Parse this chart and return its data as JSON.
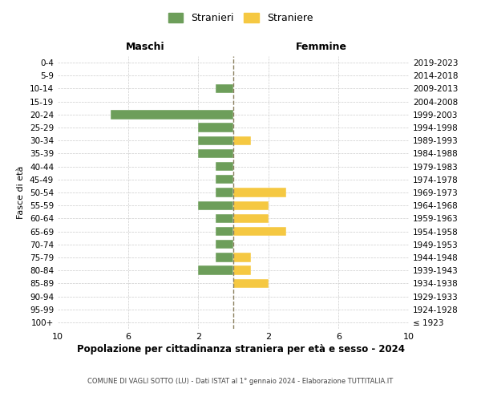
{
  "age_groups": [
    "100+",
    "95-99",
    "90-94",
    "85-89",
    "80-84",
    "75-79",
    "70-74",
    "65-69",
    "60-64",
    "55-59",
    "50-54",
    "45-49",
    "40-44",
    "35-39",
    "30-34",
    "25-29",
    "20-24",
    "15-19",
    "10-14",
    "5-9",
    "0-4"
  ],
  "birth_years": [
    "≤ 1923",
    "1924-1928",
    "1929-1933",
    "1934-1938",
    "1939-1943",
    "1944-1948",
    "1949-1953",
    "1954-1958",
    "1959-1963",
    "1964-1968",
    "1969-1973",
    "1974-1978",
    "1979-1983",
    "1984-1988",
    "1989-1993",
    "1994-1998",
    "1999-2003",
    "2004-2008",
    "2009-2013",
    "2014-2018",
    "2019-2023"
  ],
  "maschi": [
    0,
    0,
    0,
    0,
    2,
    1,
    1,
    1,
    1,
    2,
    1,
    1,
    1,
    2,
    2,
    2,
    7,
    0,
    1,
    0,
    0
  ],
  "femmine": [
    0,
    0,
    0,
    2,
    1,
    1,
    0,
    3,
    2,
    2,
    3,
    0,
    0,
    0,
    1,
    0,
    0,
    0,
    0,
    0,
    0
  ],
  "maschi_color": "#6d9e5a",
  "femmine_color": "#f5c842",
  "title": "Popolazione per cittadinanza straniera per età e sesso - 2024",
  "subtitle": "COMUNE DI VAGLI SOTTO (LU) - Dati ISTAT al 1° gennaio 2024 - Elaborazione TUTTITALIA.IT",
  "xlabel_left": "Maschi",
  "xlabel_right": "Femmine",
  "ylabel_left": "Fasce di età",
  "legend_maschi": "Stranieri",
  "legend_femmine": "Straniere",
  "xlim": 10,
  "background_color": "#ffffff",
  "grid_color": "#cccccc",
  "dashed_line_color": "#8b8060"
}
